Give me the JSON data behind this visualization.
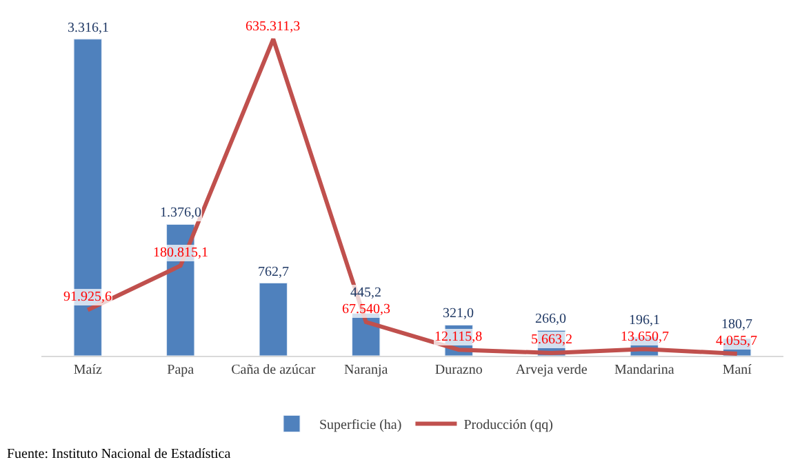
{
  "chart_data": {
    "type": "bar",
    "categories": [
      "Maíz",
      "Papa",
      "Caña de azúcar",
      "Naranja",
      "Durazno",
      "Arveja verde",
      "Mandarina",
      "Maní"
    ],
    "series": [
      {
        "name": "Superficie (ha)",
        "color": "#4f81bd",
        "values": [
          3316.1,
          1376.0,
          762.7,
          445.2,
          321.0,
          266.0,
          196.1,
          180.7
        ],
        "value_labels": [
          "3.316,1",
          "1.376,0",
          "762,7",
          "445,2",
          "321,0",
          "266,0",
          "196,1",
          "180,7"
        ]
      },
      {
        "name": "Producción (qq)",
        "type": "line",
        "axis": "y2",
        "color": "#c0504d",
        "values": [
          91925.6,
          180815.1,
          635311.3,
          67540.3,
          12115.8,
          5663.2,
          13650.7,
          4055.7
        ],
        "value_labels": [
          "91.925,6",
          "180.815,1",
          "635.311,3",
          "67.540,3",
          "12.115,8",
          "5.663,2",
          "13.650,7",
          "4.055,7"
        ]
      }
    ],
    "tick_labels": "x",
    "legend": "bottom",
    "marker": "none",
    "line_style": "solid",
    "annotations": [
      "Fuente: Instituto Nacional de Estadística"
    ]
  }
}
